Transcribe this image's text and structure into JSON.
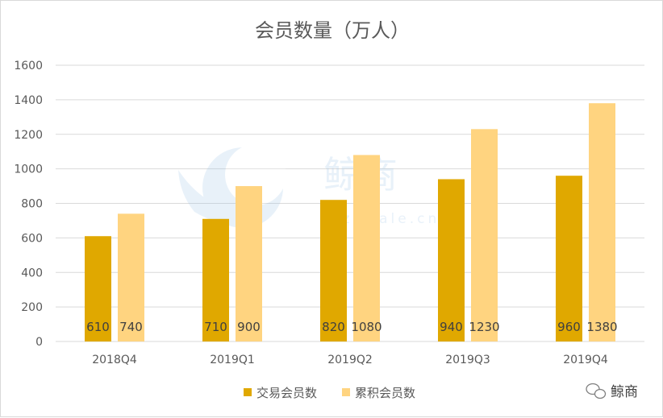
{
  "chart_data": {
    "type": "bar",
    "title": "会员数量（万人）",
    "categories": [
      "2018Q4",
      "2019Q1",
      "2019Q2",
      "2019Q3",
      "2019Q4"
    ],
    "series": [
      {
        "name": "交易会员数",
        "values": [
          610,
          710,
          820,
          940,
          960
        ],
        "color": "#E0A800"
      },
      {
        "name": "累积会员数",
        "values": [
          740,
          900,
          1080,
          1230,
          1380
        ],
        "color": "#FFD480"
      }
    ],
    "ylim": [
      0,
      1600
    ],
    "yticks": [
      0,
      200,
      400,
      600,
      800,
      1000,
      1200,
      1400,
      1600
    ],
    "grid": true,
    "legend": "bottom"
  },
  "watermark": {
    "logo_text": "鲸商",
    "url_text": "bizwhale.cn"
  },
  "brand": {
    "name": "鲸商",
    "icon": "wechat-icon"
  }
}
